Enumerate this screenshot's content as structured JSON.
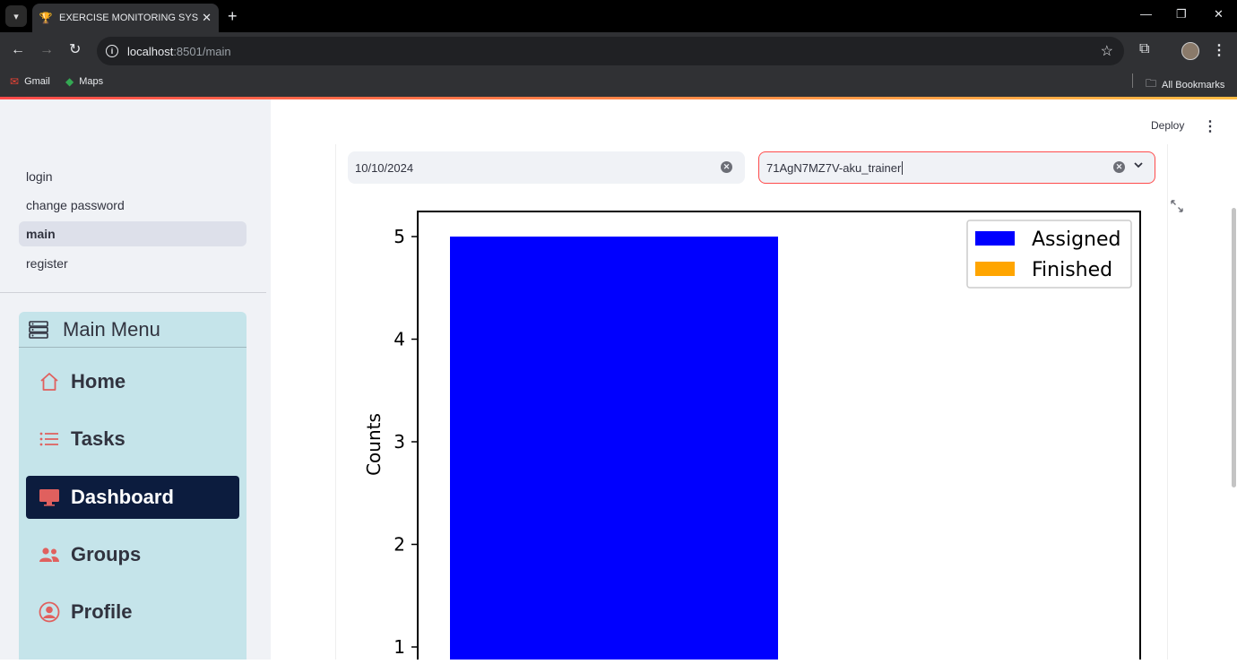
{
  "browser": {
    "tab_title": "EXERCISE MONITORING SYSTEM",
    "url_host": "localhost",
    "url_path": ":8501/main",
    "bookmarks": [
      {
        "label": "Gmail",
        "icon": "gmail-icon"
      },
      {
        "label": "Maps",
        "icon": "maps-icon"
      }
    ],
    "all_bookmarks": "All Bookmarks"
  },
  "sidebar": {
    "nav": [
      {
        "label": "login",
        "active": false
      },
      {
        "label": "change password",
        "active": false
      },
      {
        "label": "main",
        "active": true
      },
      {
        "label": "register",
        "active": false
      }
    ],
    "menu": {
      "title": "Main Menu",
      "items": [
        {
          "label": "Home",
          "icon": "house-icon",
          "active": false
        },
        {
          "label": "Tasks",
          "icon": "list-icon",
          "active": false
        },
        {
          "label": "Dashboard",
          "icon": "display-icon",
          "active": true
        },
        {
          "label": "Groups",
          "icon": "people-icon",
          "active": false
        },
        {
          "label": "Profile",
          "icon": "person-circle-icon",
          "active": false
        }
      ]
    }
  },
  "header": {
    "deploy_label": "Deploy"
  },
  "filters": {
    "date_value": "10/10/2024",
    "group_value": "71AgN7MZ7V-aku_trainer"
  },
  "colors": {
    "assigned": "#0000ff",
    "finished": "#ffa500",
    "active_menu": "#0c1c3e",
    "menu_bg": "#c5e4ea",
    "icon_accent": "#e0605e"
  },
  "chart_data": {
    "type": "bar",
    "ylabel": "Counts",
    "yticks": [
      1,
      2,
      3,
      4,
      5
    ],
    "ylim": [
      0,
      5.25
    ],
    "series": [
      {
        "name": "Assigned",
        "values": [
          5
        ]
      },
      {
        "name": "Finished",
        "values": [
          0
        ]
      }
    ],
    "legend": "top-right"
  }
}
